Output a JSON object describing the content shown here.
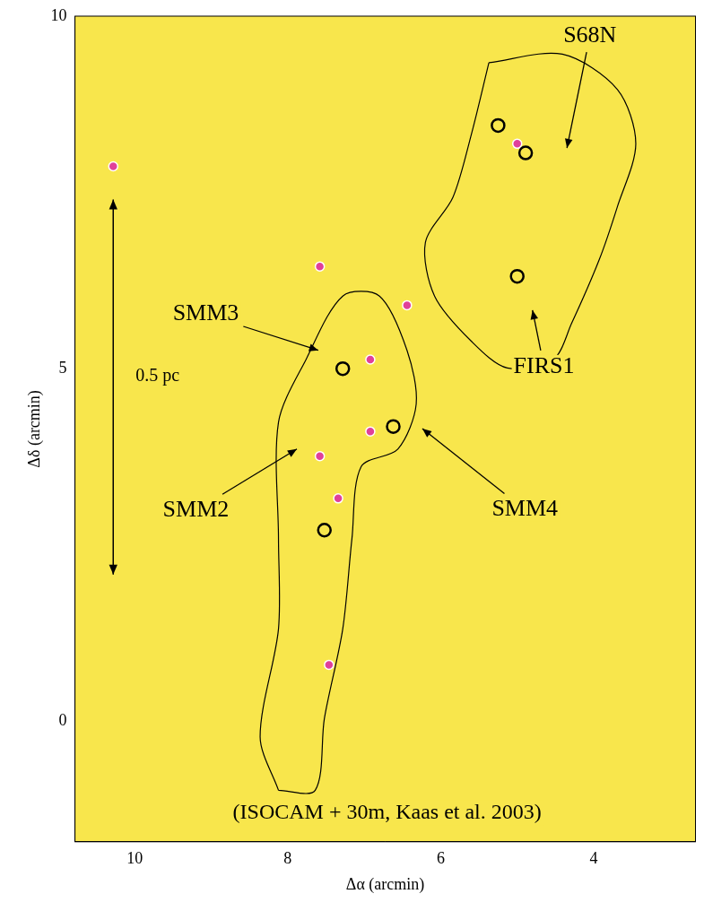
{
  "chart_data": {
    "type": "scatter",
    "xlabel": "Δα (arcmin)",
    "ylabel": "Δδ (arcmin)",
    "xlim": [
      10.78,
      2.67
    ],
    "ylim": [
      -1.71,
      10
    ],
    "xticks": [
      10,
      8,
      6,
      4
    ],
    "yticks": [
      0,
      5,
      10
    ],
    "grid": false,
    "series": [
      {
        "color": "#000000",
        "marker": "none",
        "line_style": "solid",
        "x": [
          5.37,
          4.41,
          3.69,
          3.45,
          3.69,
          3.93,
          4.29,
          4.53,
          5.13,
          5.6,
          6.08,
          6.2,
          5.84,
          5.6,
          5.37
        ],
        "values": [
          9.34,
          9.46,
          8.96,
          8.19,
          7.3,
          6.54,
          5.64,
          5.13,
          5.01,
          5.39,
          6.03,
          6.79,
          7.43,
          8.32,
          9.34
        ]
      },
      {
        "color": "#000000",
        "marker": "none",
        "line_style": "solid",
        "x": [
          8.12,
          8.36,
          8.12,
          8.12,
          8.12,
          7.76,
          7.28,
          6.8,
          6.44,
          6.32,
          6.56,
          7.04,
          7.16,
          7.28,
          7.52,
          7.64,
          8.12
        ],
        "values": [
          -0.98,
          -0.22,
          1.31,
          2.59,
          4.24,
          5.13,
          6.03,
          6.03,
          5.26,
          4.5,
          3.86,
          3.61,
          2.59,
          1.31,
          0.04,
          -0.98,
          -0.98
        ]
      },
      {
        "color": "#000000",
        "marker": "ring",
        "line_style": "none",
        "x": [
          5.0,
          6.62,
          7.28,
          4.89,
          5.25,
          7.52
        ],
        "values": [
          6.31,
          4.18,
          5.0,
          8.06,
          8.45,
          2.71
        ]
      },
      {
        "color": "#e0409a",
        "marker": "circle",
        "line_style": "none",
        "x": [
          10.28,
          7.58,
          6.92,
          6.44,
          6.92,
          7.58,
          7.34,
          5.0,
          7.46
        ],
        "values": [
          7.87,
          6.45,
          5.13,
          5.9,
          4.11,
          3.76,
          3.16,
          8.19,
          0.8
        ]
      }
    ],
    "annotations": [
      {
        "text": "S68N",
        "x": 4.05,
        "y": 9.72,
        "arrow_to": [
          4.35,
          8.13
        ]
      },
      {
        "text": "FIRS1",
        "x": 4.65,
        "y": 5.03,
        "arrow_to": [
          4.8,
          5.83
        ]
      },
      {
        "text": "SMM3",
        "x": 9.07,
        "y": 5.77,
        "arrow_to": [
          7.6,
          5.26
        ]
      },
      {
        "text": "SMM2",
        "x": 9.2,
        "y": 2.99,
        "arrow_to": [
          7.88,
          3.86
        ]
      },
      {
        "text": "SMM4",
        "x": 4.9,
        "y": 3.0,
        "arrow_to": [
          6.24,
          4.15
        ]
      }
    ],
    "scale_bar": {
      "label": "0.5 pc",
      "label_x": 9.7,
      "label_y": 4.89,
      "x": 10.28,
      "y": [
        2.08,
        7.4
      ]
    },
    "credit": {
      "text": "(ISOCAM + 30m, Kaas et al. 2003)",
      "x": 6.7,
      "y": -1.3
    }
  }
}
